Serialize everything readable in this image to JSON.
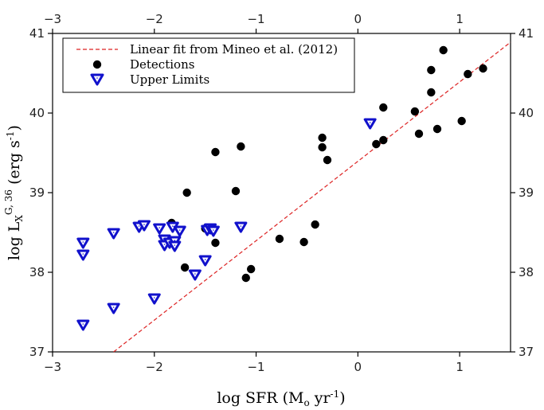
{
  "chart_data": {
    "type": "scatter",
    "xlabel": {
      "pre": "log SFR (M",
      "sub": "o",
      "mid": " yr",
      "sup": "-1",
      "post": ")"
    },
    "ylabel": {
      "pre": "log L",
      "sub": "X",
      "sup": "G, 36",
      "mid": " (erg s",
      "sup2": "-1",
      "post": ")"
    },
    "xlim": [
      -3,
      1.5
    ],
    "ylim": [
      37,
      41
    ],
    "xticks": [
      -3,
      -2,
      -1,
      0,
      1
    ],
    "yticks": [
      37,
      38,
      39,
      40,
      41
    ],
    "xtick_labels": [
      "−3",
      "−2",
      "−1",
      "0",
      "1"
    ],
    "ytick_labels": [
      "37",
      "38",
      "39",
      "40",
      "41"
    ],
    "top_axis_mirrored": true,
    "right_axis_mirrored": true,
    "grid": false,
    "legend_position": "top-left",
    "colors": {
      "fit": "#dd2222",
      "detections": "#000000",
      "upper_limits": "#1111cc"
    },
    "series": [
      {
        "name": "Linear fit from Mineo et al. (2012)",
        "kind": "line",
        "style": "dashed",
        "x": [
          -2.4,
          1.5
        ],
        "y": [
          37.0,
          40.89
        ]
      },
      {
        "name": "Detections",
        "kind": "circle",
        "x": [
          -1.68,
          -1.83,
          -1.5,
          -1.4,
          -1.7,
          -1.1,
          -1.05,
          -1.4,
          -1.15,
          -1.2,
          -0.77,
          -0.53,
          -0.42,
          -0.35,
          -0.35,
          -0.3,
          0.18,
          0.25,
          0.25,
          0.56,
          0.6,
          0.72,
          0.72,
          0.78,
          0.84,
          1.02,
          1.08,
          1.23
        ],
        "y": [
          39.0,
          38.62,
          38.55,
          38.37,
          38.06,
          37.93,
          38.04,
          39.51,
          39.58,
          39.02,
          38.42,
          38.38,
          38.6,
          39.69,
          39.57,
          39.41,
          39.61,
          39.66,
          40.07,
          40.02,
          39.74,
          40.26,
          40.54,
          39.8,
          40.79,
          39.9,
          40.49,
          40.56
        ]
      },
      {
        "name": "Upper Limits",
        "kind": "triangle-down",
        "x": [
          -2.7,
          -2.7,
          -2.7,
          -2.4,
          -2.4,
          -2.15,
          -2.1,
          -2.0,
          -1.95,
          -1.9,
          -1.9,
          -1.85,
          -1.82,
          -1.8,
          -1.8,
          -1.75,
          -1.6,
          -1.5,
          -1.48,
          -1.45,
          -1.42,
          -1.15,
          0.12
        ],
        "y": [
          38.37,
          38.22,
          37.34,
          38.49,
          37.55,
          38.57,
          38.59,
          37.67,
          38.55,
          38.41,
          38.34,
          38.37,
          38.57,
          38.39,
          38.33,
          38.52,
          37.97,
          38.15,
          38.53,
          38.55,
          38.52,
          38.57,
          39.87
        ]
      }
    ]
  }
}
